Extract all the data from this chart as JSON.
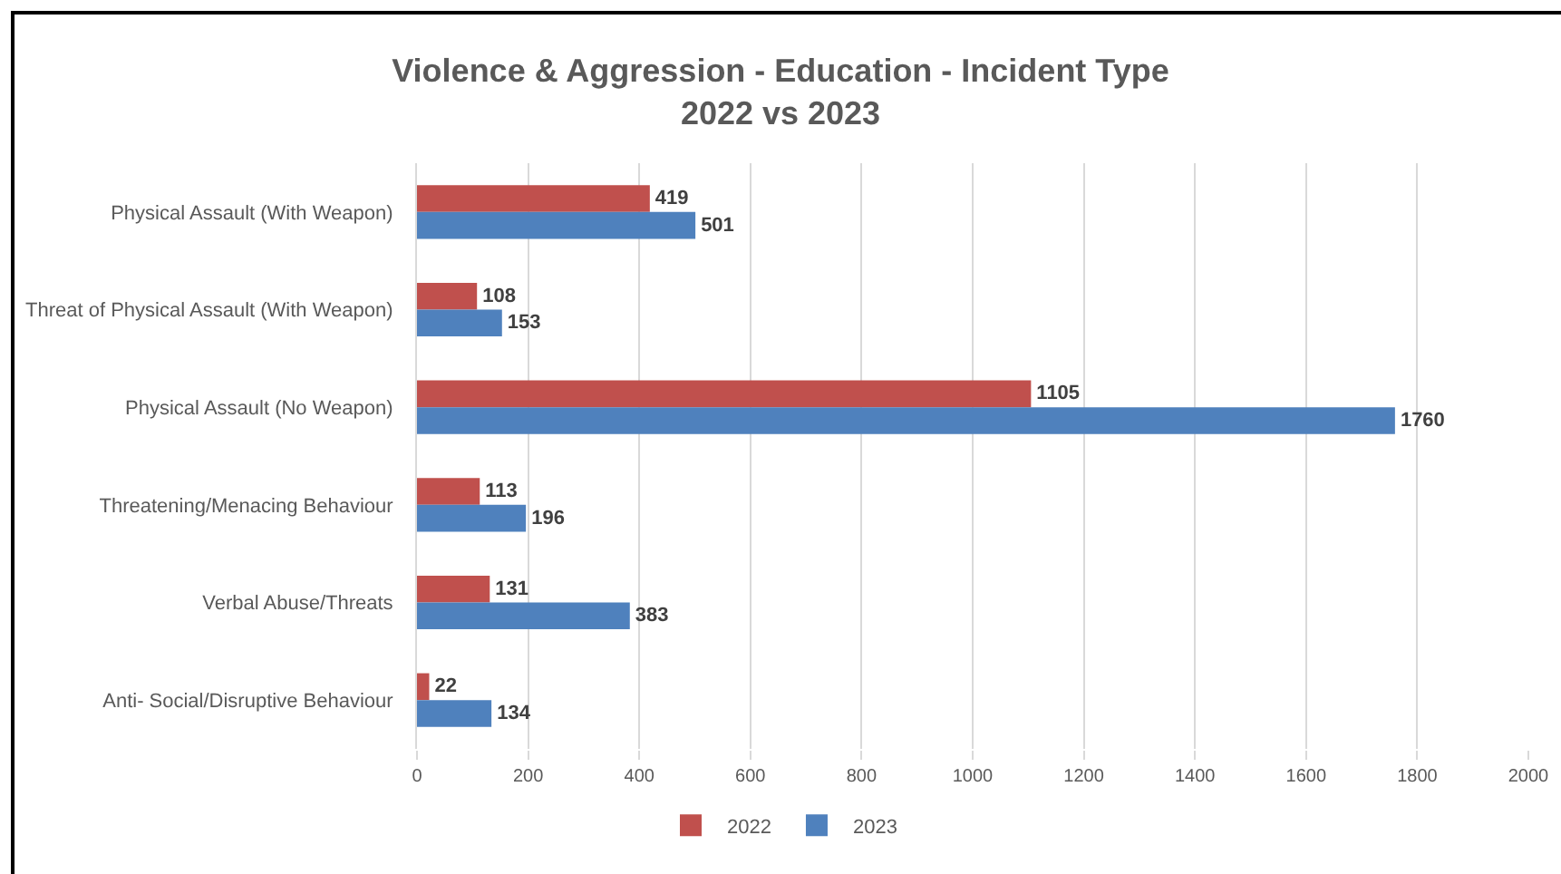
{
  "chart_data": {
    "type": "bar",
    "orientation": "horizontal",
    "title": "Violence & Aggression - Education - Incident Type\n2022 vs 2023",
    "categories": [
      "Physical Assault (With Weapon)",
      "Threat of Physical Assault (With Weapon)",
      "Physical Assault (No Weapon)",
      "Threatening/Menacing Behaviour",
      "Verbal Abuse/Threats",
      "Anti- Social/Disruptive Behaviour"
    ],
    "series": [
      {
        "name": "2022",
        "color": "#c0504d",
        "values": [
          419,
          108,
          1105,
          113,
          131,
          22
        ]
      },
      {
        "name": "2023",
        "color": "#4f81bd",
        "values": [
          501,
          153,
          1760,
          196,
          383,
          134
        ]
      }
    ],
    "xlim": [
      0,
      2000
    ],
    "xticks": [
      0,
      200,
      400,
      600,
      800,
      1000,
      1200,
      1400,
      1600,
      1800,
      2000
    ],
    "grid": "x",
    "legend": "bottom",
    "data_labels": true
  }
}
